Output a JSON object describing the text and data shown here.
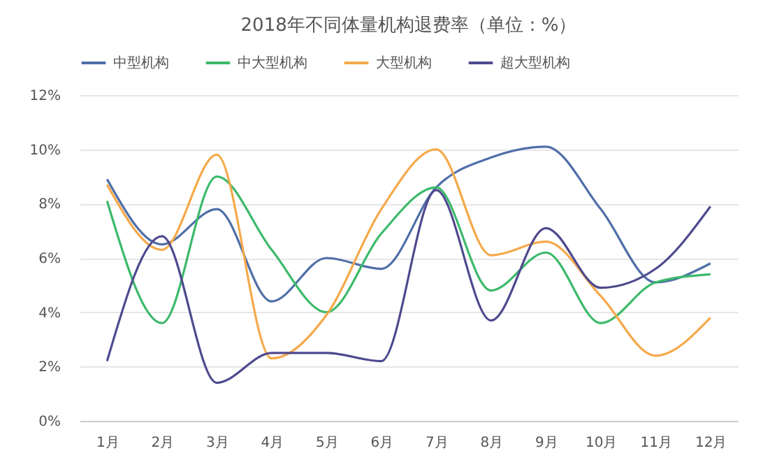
{
  "chart_data": {
    "type": "line",
    "title": "2018年不同体量机构退费率（单位：%）",
    "categories": [
      "1月",
      "2月",
      "3月",
      "4月",
      "5月",
      "6月",
      "7月",
      "8月",
      "9月",
      "10月",
      "11月",
      "12月"
    ],
    "series": [
      {
        "name": "中型机构",
        "color": "#4f6fa8",
        "values": [
          8.9,
          6.5,
          7.8,
          4.4,
          6.0,
          5.6,
          8.6,
          9.7,
          10.1,
          7.8,
          5.1,
          5.8
        ]
      },
      {
        "name": "中大型机构",
        "color": "#3cb96a",
        "values": [
          8.1,
          3.6,
          9.0,
          6.3,
          4.0,
          6.9,
          8.6,
          4.8,
          6.2,
          3.6,
          5.1,
          5.4
        ]
      },
      {
        "name": "大型机构",
        "color": "#f5a94a",
        "values": [
          8.7,
          6.3,
          9.8,
          2.3,
          3.9,
          7.8,
          10.0,
          6.1,
          6.6,
          4.6,
          2.4,
          3.8
        ]
      },
      {
        "name": "超大型机构",
        "color": "#4e4a8e",
        "values": [
          2.2,
          6.8,
          1.4,
          2.5,
          2.5,
          2.2,
          8.5,
          3.7,
          7.1,
          4.9,
          5.6,
          7.9
        ]
      }
    ],
    "ylim": [
      0,
      12
    ],
    "yticks": [
      {
        "value": 0,
        "label": "0%"
      },
      {
        "value": 2,
        "label": "2%"
      },
      {
        "value": 4,
        "label": "4%"
      },
      {
        "value": 6,
        "label": "6%"
      },
      {
        "value": 8,
        "label": "8%"
      },
      {
        "value": 10,
        "label": "10%"
      },
      {
        "value": 12,
        "label": "12%"
      }
    ],
    "grid": "y",
    "legend": "top",
    "marker": "none",
    "line_style": "solid"
  }
}
